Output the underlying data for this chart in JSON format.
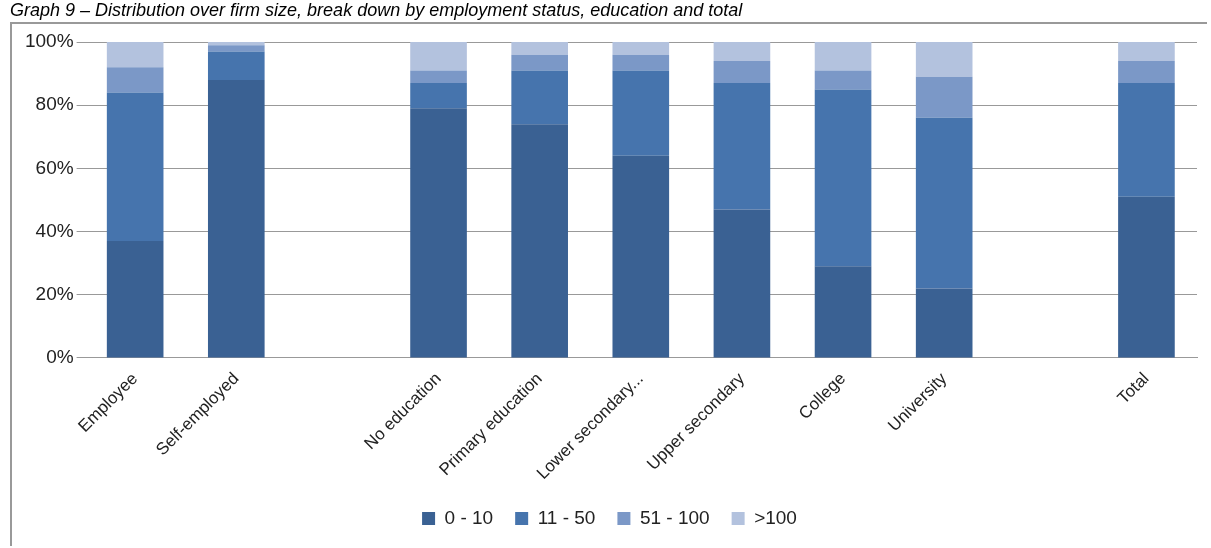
{
  "chart_data": {
    "type": "bar",
    "stacked": true,
    "title": "Graph 9 – Distribution over firm size, break down by employment status, education and total",
    "categories": [
      "Employee",
      "Self-employed",
      null,
      "No education",
      "Primary education",
      "Lower secondary...",
      "Upper secondary",
      "College",
      "University",
      null,
      "Total"
    ],
    "series": [
      {
        "name": "0 - 10",
        "color": "#3a6193",
        "values": [
          37,
          88,
          null,
          79,
          74,
          64,
          47,
          29,
          22,
          null,
          51
        ]
      },
      {
        "name": "11 - 50",
        "color": "#4674ad",
        "values": [
          47,
          9,
          null,
          8,
          17,
          27,
          40,
          56,
          54,
          null,
          36
        ]
      },
      {
        "name": "51 - 100",
        "color": "#7b98c7",
        "values": [
          8,
          2,
          null,
          4,
          5,
          5,
          7,
          6,
          13,
          null,
          7
        ]
      },
      {
        "name": ">100",
        "color": "#b3c2de",
        "values": [
          8,
          1,
          null,
          9,
          4,
          4,
          6,
          9,
          11,
          null,
          6
        ]
      }
    ],
    "ylim": [
      0,
      100
    ],
    "yticks": [
      {
        "value": 0,
        "label": "0%"
      },
      {
        "value": 20,
        "label": "20%"
      },
      {
        "value": 40,
        "label": "40%"
      },
      {
        "value": 60,
        "label": "60%"
      },
      {
        "value": 80,
        "label": "80%"
      },
      {
        "value": 100,
        "label": "100%"
      }
    ],
    "grid": "y",
    "legend": "bottom"
  }
}
